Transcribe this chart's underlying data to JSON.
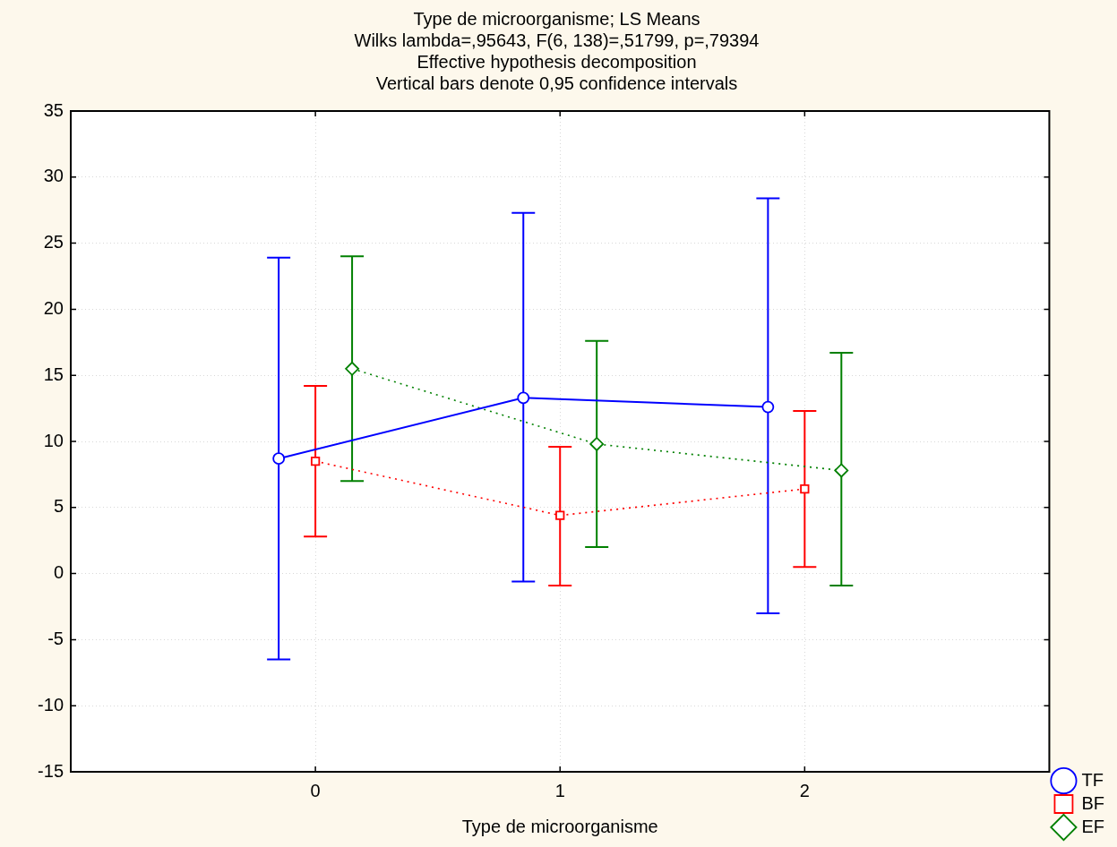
{
  "chart_data": {
    "type": "line",
    "title": "Type de microorganisme; LS Means",
    "subtitle": "Wilks lambda=,95643, F(6, 138)=,51799, p=,79394\nEffective hypothesis decomposition\nVertical bars denote 0,95 confidence intervals",
    "xlabel": "Type de microorganisme",
    "xlim": [
      -1,
      3
    ],
    "xticks": [
      0,
      1,
      2
    ],
    "ylim": [
      -15,
      35
    ],
    "yticks": [
      -15,
      -10,
      -5,
      0,
      5,
      10,
      15,
      20,
      25,
      30,
      35
    ],
    "grid": true,
    "legend": "bottom right",
    "series": [
      {
        "name": "TF",
        "color": "#0000ff",
        "x": [
          -0.15,
          0.85,
          1.85
        ],
        "values": [
          8.7,
          13.3,
          12.6
        ],
        "errors": [
          [
            -6.5,
            23.9
          ],
          [
            -0.6,
            27.3
          ],
          [
            -3.0,
            28.4
          ]
        ],
        "marker": "circle",
        "line_style": "solid"
      },
      {
        "name": "BF",
        "color": "#ff0000",
        "x": [
          0,
          1,
          2
        ],
        "values": [
          8.5,
          4.4,
          6.4
        ],
        "errors": [
          [
            2.8,
            14.2
          ],
          [
            -0.9,
            9.6
          ],
          [
            0.5,
            12.3
          ]
        ],
        "marker": "square",
        "line_style": "dotted"
      },
      {
        "name": "EF",
        "color": "#008000",
        "x": [
          0.15,
          1.15,
          2.15
        ],
        "values": [
          15.5,
          9.8,
          7.8
        ],
        "errors": [
          [
            7.0,
            24.0
          ],
          [
            2.0,
            17.6
          ],
          [
            -0.9,
            16.7
          ]
        ],
        "marker": "diamond",
        "line_style": "dotted"
      }
    ]
  }
}
